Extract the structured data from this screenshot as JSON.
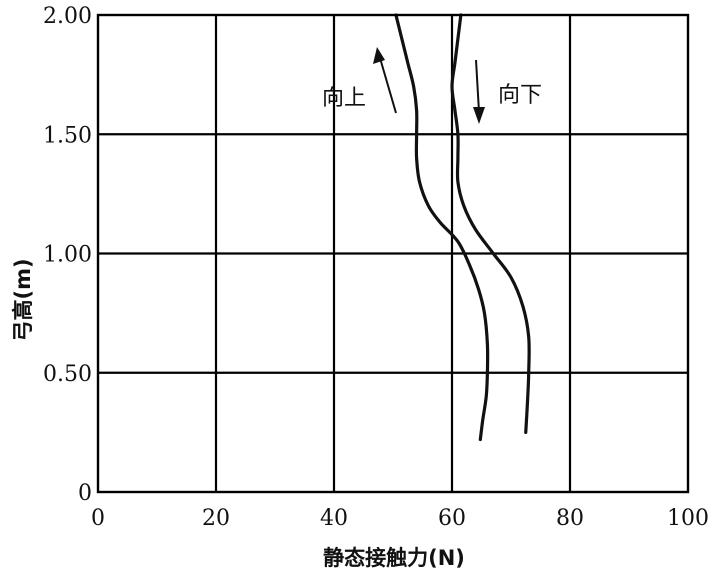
{
  "chart_data": {
    "type": "line",
    "xlabel": "静态接触力(N)",
    "ylabel": "弓高(m)",
    "xlim": [
      0,
      100
    ],
    "ylim": [
      0,
      2.0
    ],
    "x_ticks": [
      "0",
      "20",
      "40",
      "60",
      "80",
      "100"
    ],
    "y_ticks": [
      "0",
      "0.50",
      "1.00",
      "1.50",
      "2.00"
    ],
    "grid": true,
    "series": [
      {
        "name": "向上",
        "points": [
          [
            50.5,
            2.0
          ],
          [
            51.5,
            1.9
          ],
          [
            52.5,
            1.8
          ],
          [
            53.5,
            1.7
          ],
          [
            54,
            1.6
          ],
          [
            54,
            1.5
          ],
          [
            54,
            1.4
          ],
          [
            54.5,
            1.3
          ],
          [
            56,
            1.2
          ],
          [
            58,
            1.13
          ],
          [
            61,
            1.05
          ],
          [
            63,
            0.95
          ],
          [
            64.5,
            0.85
          ],
          [
            65.5,
            0.75
          ],
          [
            66,
            0.62
          ],
          [
            66,
            0.5
          ],
          [
            65.8,
            0.4
          ],
          [
            65.2,
            0.3
          ],
          [
            64.8,
            0.22
          ]
        ]
      },
      {
        "name": "向下",
        "points": [
          [
            61.5,
            2.0
          ],
          [
            61,
            1.9
          ],
          [
            60.5,
            1.8
          ],
          [
            60,
            1.7
          ],
          [
            60.5,
            1.6
          ],
          [
            61,
            1.5
          ],
          [
            61,
            1.4
          ],
          [
            61,
            1.3
          ],
          [
            62,
            1.2
          ],
          [
            64,
            1.1
          ],
          [
            67,
            1.0
          ],
          [
            70,
            0.9
          ],
          [
            72,
            0.78
          ],
          [
            73,
            0.65
          ],
          [
            73,
            0.5
          ],
          [
            72.8,
            0.38
          ],
          [
            72.5,
            0.25
          ]
        ]
      }
    ],
    "annotations": [
      {
        "text": "向上",
        "direction": "up"
      },
      {
        "text": "向下",
        "direction": "down"
      }
    ]
  }
}
